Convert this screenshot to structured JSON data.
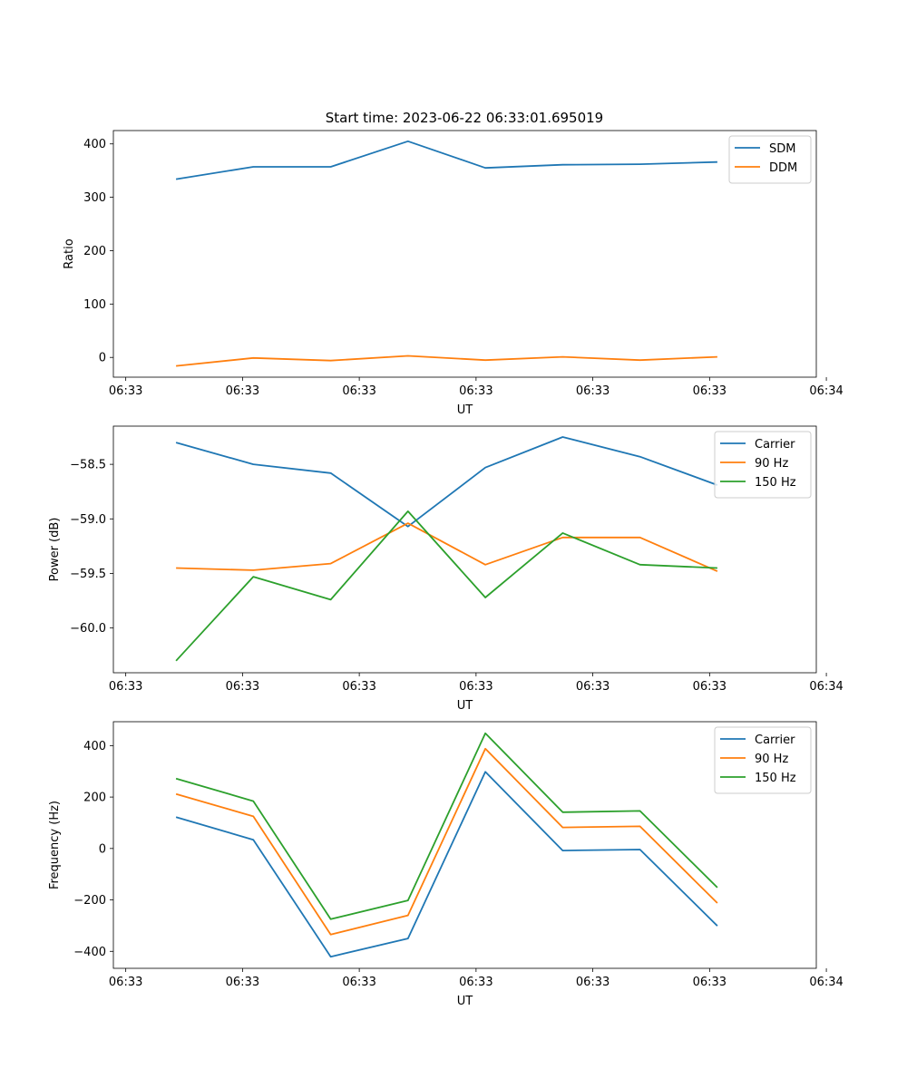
{
  "title": "Start time: 2023-06-22 06:33:01.695019",
  "chart_data": [
    {
      "type": "line",
      "xlabel": "UT",
      "ylabel": "Ratio",
      "x": [
        1,
        2,
        3,
        4,
        5,
        6,
        7,
        8
      ],
      "xlim": [
        0.19,
        9.28
      ],
      "x_ticks": [
        {
          "value": 0.35,
          "label": "06:33"
        },
        {
          "value": 1.86,
          "label": "06:33"
        },
        {
          "value": 3.37,
          "label": "06:33"
        },
        {
          "value": 4.88,
          "label": "06:33"
        },
        {
          "value": 6.39,
          "label": "06:33"
        },
        {
          "value": 7.9,
          "label": "06:33"
        },
        {
          "value": 9.41,
          "label": "06:34"
        }
      ],
      "ylim": [
        -37,
        425
      ],
      "y_ticks": [
        {
          "value": 0,
          "label": "0"
        },
        {
          "value": 100,
          "label": "100"
        },
        {
          "value": 200,
          "label": "200"
        },
        {
          "value": 300,
          "label": "300"
        },
        {
          "value": 400,
          "label": "400"
        }
      ],
      "legend_position": "top-right",
      "series": [
        {
          "name": "SDM",
          "color": "#1f77b4",
          "values": [
            334,
            357,
            357,
            405,
            355,
            361,
            362,
            366
          ]
        },
        {
          "name": "DDM",
          "color": "#ff7f0e",
          "values": [
            -16,
            -1,
            -6,
            3,
            -5,
            1,
            -5,
            1
          ]
        }
      ]
    },
    {
      "type": "line",
      "xlabel": "UT",
      "ylabel": "Power (dB)",
      "x": [
        1,
        2,
        3,
        4,
        5,
        6,
        7,
        8
      ],
      "xlim": [
        0.19,
        9.28
      ],
      "x_ticks": [
        {
          "value": 0.35,
          "label": "06:33"
        },
        {
          "value": 1.86,
          "label": "06:33"
        },
        {
          "value": 3.37,
          "label": "06:33"
        },
        {
          "value": 4.88,
          "label": "06:33"
        },
        {
          "value": 6.39,
          "label": "06:33"
        },
        {
          "value": 7.9,
          "label": "06:33"
        },
        {
          "value": 9.41,
          "label": "06:34"
        }
      ],
      "ylim": [
        -60.41,
        -58.15
      ],
      "y_ticks": [
        {
          "value": -60.0,
          "label": "−60.0"
        },
        {
          "value": -59.5,
          "label": "−59.5"
        },
        {
          "value": -59.0,
          "label": "−59.0"
        },
        {
          "value": -58.5,
          "label": "−58.5"
        }
      ],
      "legend_position": "top-right",
      "series": [
        {
          "name": "Carrier",
          "color": "#1f77b4",
          "values": [
            -58.3,
            -58.5,
            -58.58,
            -59.07,
            -58.53,
            -58.25,
            -58.43,
            -58.69
          ]
        },
        {
          "name": "90 Hz",
          "color": "#ff7f0e",
          "values": [
            -59.45,
            -59.47,
            -59.41,
            -59.04,
            -59.42,
            -59.17,
            -59.17,
            -59.48
          ]
        },
        {
          "name": "150 Hz",
          "color": "#2ca02c",
          "values": [
            -60.3,
            -59.53,
            -59.74,
            -58.93,
            -59.72,
            -59.13,
            -59.42,
            -59.45
          ]
        }
      ]
    },
    {
      "type": "line",
      "xlabel": "UT",
      "ylabel": "Frequency (Hz)",
      "x": [
        1,
        2,
        3,
        4,
        5,
        6,
        7,
        8
      ],
      "xlim": [
        0.19,
        9.28
      ],
      "x_ticks": [
        {
          "value": 0.35,
          "label": "06:33"
        },
        {
          "value": 1.86,
          "label": "06:33"
        },
        {
          "value": 3.37,
          "label": "06:33"
        },
        {
          "value": 4.88,
          "label": "06:33"
        },
        {
          "value": 6.39,
          "label": "06:33"
        },
        {
          "value": 7.9,
          "label": "06:33"
        },
        {
          "value": 9.41,
          "label": "06:34"
        }
      ],
      "ylim": [
        -466,
        493
      ],
      "y_ticks": [
        {
          "value": -400,
          "label": "−400"
        },
        {
          "value": -200,
          "label": "−200"
        },
        {
          "value": 0,
          "label": "0"
        },
        {
          "value": 200,
          "label": "200"
        },
        {
          "value": 400,
          "label": "400"
        }
      ],
      "legend_position": "top-right",
      "series": [
        {
          "name": "Carrier",
          "color": "#1f77b4",
          "values": [
            122,
            34,
            -421,
            -350,
            298,
            -8,
            -4,
            -301
          ]
        },
        {
          "name": "90 Hz",
          "color": "#ff7f0e",
          "values": [
            212,
            125,
            -335,
            -260,
            388,
            82,
            86,
            -212
          ]
        },
        {
          "name": "150 Hz",
          "color": "#2ca02c",
          "values": [
            272,
            184,
            -275,
            -202,
            448,
            141,
            146,
            -152
          ]
        }
      ]
    }
  ]
}
